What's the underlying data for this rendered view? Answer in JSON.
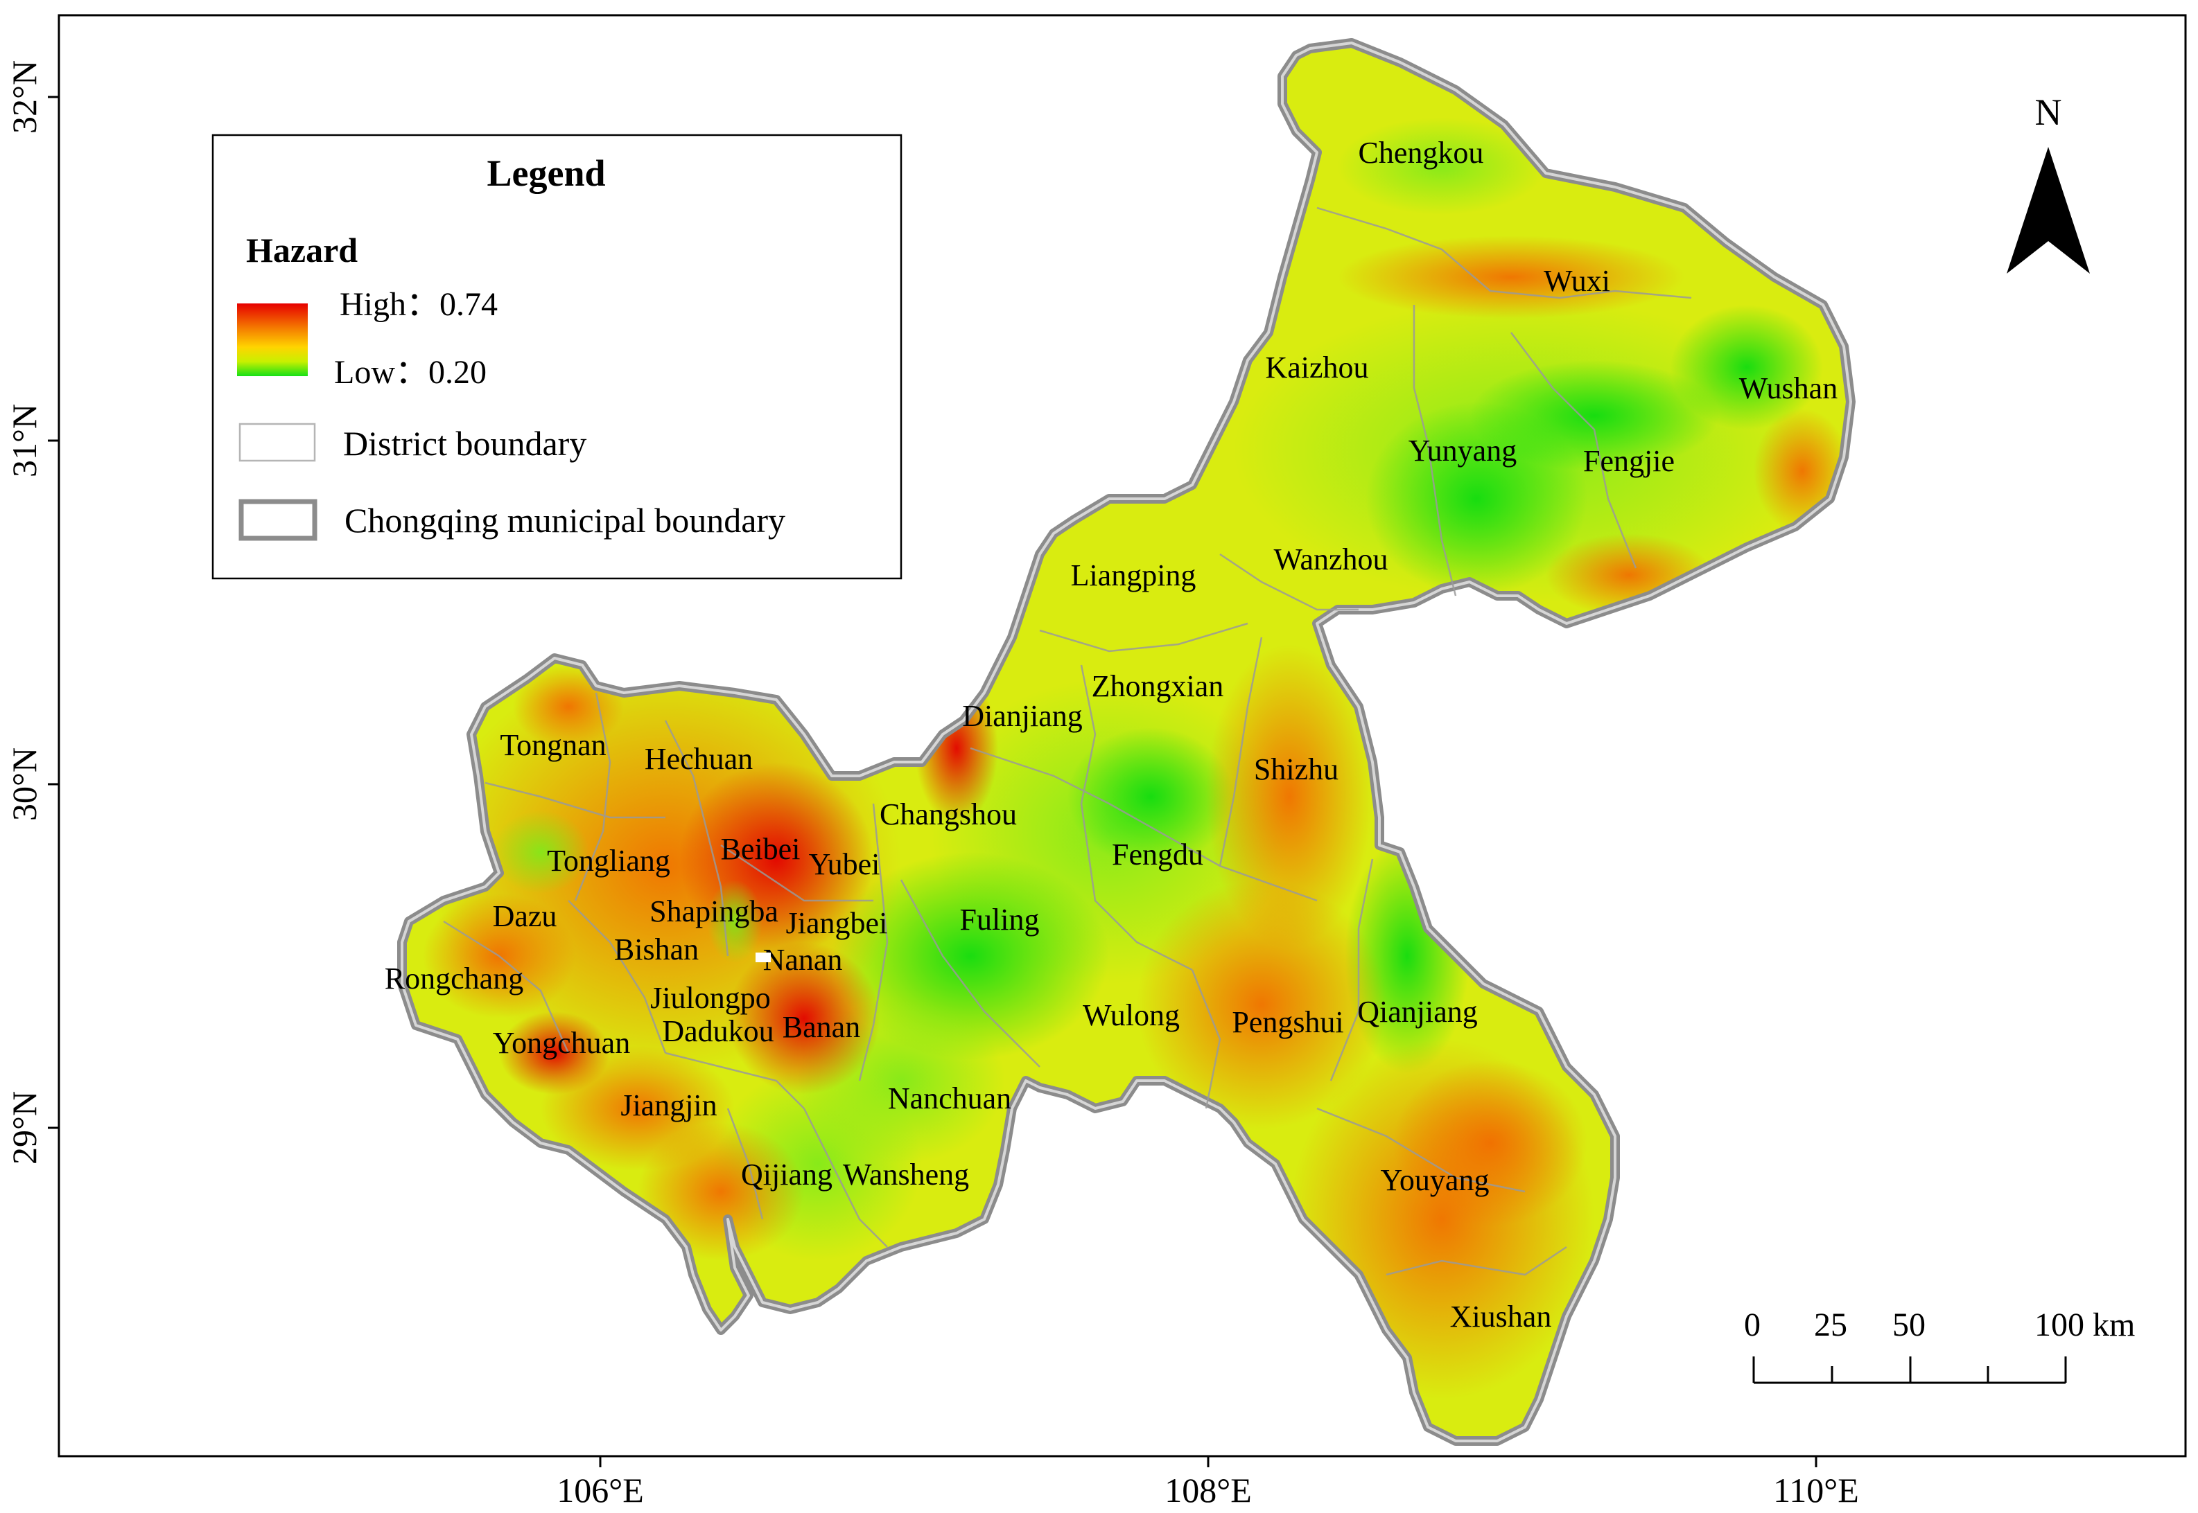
{
  "axes": {
    "x_ticks": [
      "106°E",
      "108°E",
      "110°E"
    ],
    "y_ticks": [
      "32°N",
      "31°N",
      "30°N",
      "29°N"
    ]
  },
  "legend": {
    "title": "Legend",
    "hazard_title": "Hazard",
    "high_label": "High：0.74",
    "low_label": "Low：0.20",
    "district_boundary_label": "District boundary",
    "municipal_boundary_label": "Chongqing municipal boundary"
  },
  "north_arrow": {
    "label": "N"
  },
  "scale_bar": {
    "labels": [
      "0",
      "25",
      "50",
      "100 km"
    ]
  },
  "colors": {
    "hazard_high": "#e60000",
    "hazard_mid_high": "#f57f00",
    "hazard_mid": "#ffd400",
    "hazard_mid_low": "#c8f000",
    "hazard_low": "#16e016",
    "municipal_boundary": "#8c8c8c",
    "district_boundary": "#b5b5b5"
  },
  "districts": [
    "Chengkou",
    "Wuxi",
    "Kaizhou",
    "Wushan",
    "Yunyang",
    "Fengjie",
    "Wanzhou",
    "Liangping",
    "Dianjiang",
    "Zhongxian",
    "Shizhu",
    "Tongnan",
    "Hechuan",
    "Changshou",
    "Beibei",
    "Yubei",
    "Tongliang",
    "Fengdu",
    "Shapingba",
    "Dazu",
    "Jiangbei",
    "Fuling",
    "Bishan",
    "Nanan",
    "Rongchang",
    "Jiulongpo",
    "Banan",
    "Dadukou",
    "Wulong",
    "Pengshui",
    "Qianjiang",
    "Yongchuan",
    "Nanchuan",
    "Jiangjin",
    "Qijiang",
    "Wansheng",
    "Youyang",
    "Xiushan"
  ]
}
